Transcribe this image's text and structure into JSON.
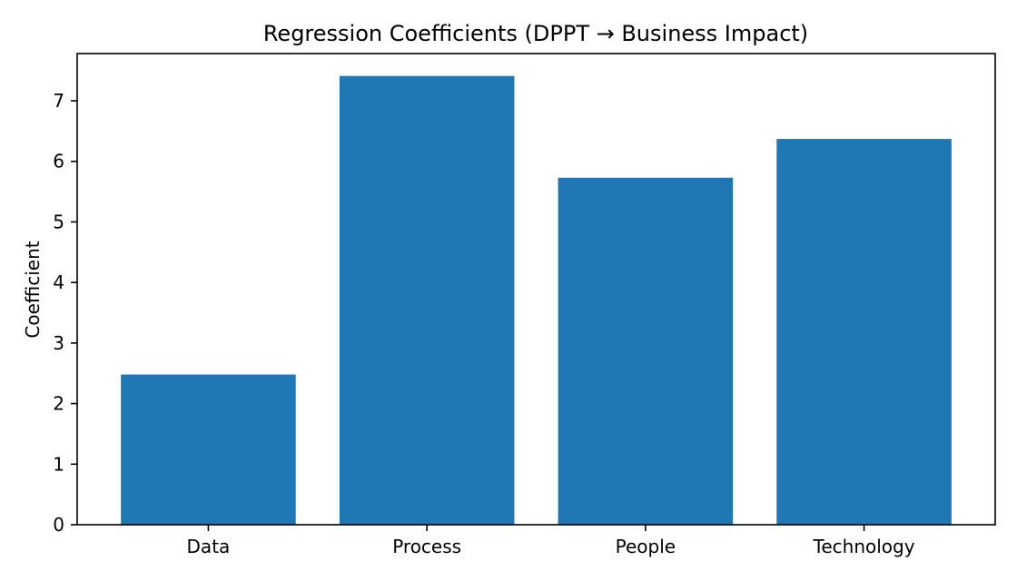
{
  "chart_data": {
    "type": "bar",
    "title": "Regression Coefficients (DPPT → Business Impact)",
    "xlabel": "",
    "ylabel": "Coefficient",
    "categories": [
      "Data",
      "Process",
      "People",
      "Technology"
    ],
    "values": [
      2.48,
      7.41,
      5.73,
      6.37
    ],
    "ylim": [
      0,
      7.78
    ],
    "yticks": [
      0,
      1,
      2,
      3,
      4,
      5,
      6,
      7
    ],
    "bar_color": "#1f77b4",
    "grid": false
  }
}
